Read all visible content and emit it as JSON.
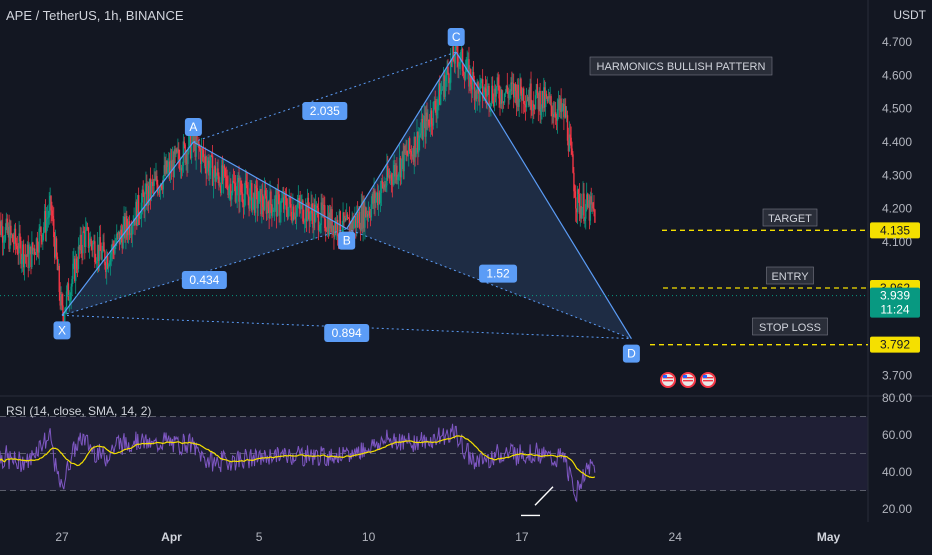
{
  "header": {
    "symbol_line": "APE / TetherUS, 1h, BINANCE",
    "currency": "USDT"
  },
  "rsi": {
    "title": "RSI (14, close, SMA, 14, 2)"
  },
  "chart_data": [
    {
      "type": "candlestick",
      "title": "APE / TetherUS, 1h, BINANCE",
      "ylabel": "USDT",
      "ylim": [
        3.63,
        4.78
      ],
      "y_ticks": [
        "4.700",
        "4.600",
        "4.500",
        "4.400",
        "4.300",
        "4.200",
        "4.100",
        "3.700"
      ],
      "x_ticks": [
        "27",
        "Apr",
        "5",
        "10",
        "17",
        "24",
        "May"
      ],
      "grid": false,
      "price_series_summary": [
        {
          "point": "start",
          "date": "Mar 24",
          "price": 4.16
        },
        {
          "point": "X",
          "date": "Mar 27",
          "price": 3.88
        },
        {
          "point": "A",
          "date": "Apr 2",
          "price": 4.4
        },
        {
          "point": "B",
          "date": "Apr 9",
          "price": 4.14
        },
        {
          "point": "C",
          "date": "Apr 14",
          "price": 4.67
        },
        {
          "point": "D",
          "date": "Apr 22",
          "price": 3.81
        },
        {
          "point": "last",
          "date": "Apr 23",
          "price": 3.939
        }
      ],
      "harmonic_points": [
        "X",
        "A",
        "B",
        "C",
        "D"
      ],
      "ratio_labels": [
        "0.434",
        "2.035",
        "1.52",
        "0.894"
      ],
      "pattern_label": "HARMONICS BULLISH PATTERN",
      "levels": [
        {
          "name": "TARGET",
          "value": "4.135",
          "color": "#f5e000"
        },
        {
          "name": "ENTRY",
          "value": "3.962",
          "color": "#f5e000"
        },
        {
          "name": "STOP LOSS",
          "value": "3.792",
          "color": "#f5e000"
        }
      ],
      "last_price": {
        "value": "3.939",
        "countdown": "11:24",
        "color": "#089981"
      },
      "colors": {
        "up": "#089981",
        "down": "#f23645",
        "pattern": "#5b9cf6",
        "background": "#131722"
      }
    },
    {
      "type": "line",
      "title": "RSI (14, close, SMA, 14, 2)",
      "ylim": [
        14,
        85
      ],
      "y_ticks": [
        "80.00",
        "60.00",
        "40.00",
        "20.00"
      ],
      "bands": [
        30,
        50,
        70
      ],
      "series": [
        {
          "name": "RSI",
          "color": "#7e57c2"
        },
        {
          "name": "SMA",
          "color": "#f5e000"
        }
      ]
    }
  ]
}
